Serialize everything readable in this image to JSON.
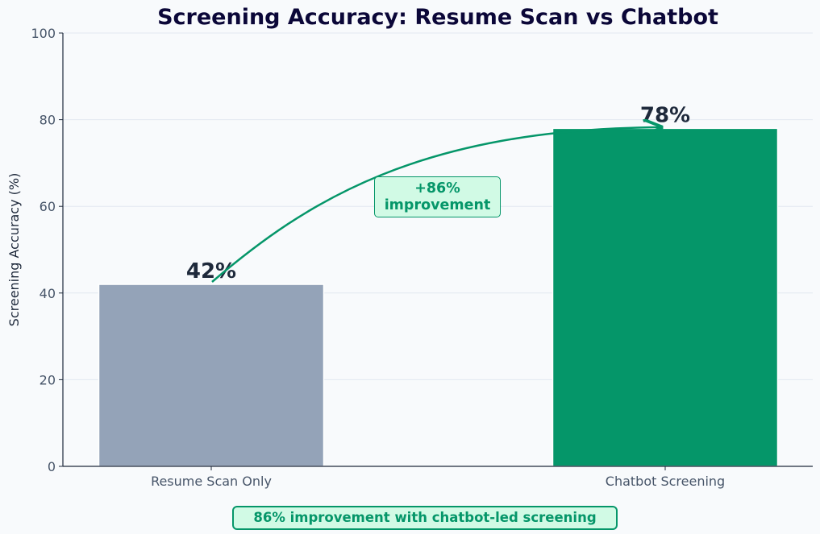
{
  "chart_data": {
    "type": "bar",
    "title": "Screening Accuracy: Resume Scan vs Chatbot",
    "xlabel": "",
    "ylabel": "Screening Accuracy (%)",
    "ylim": [
      0,
      100
    ],
    "yticks": [
      0,
      20,
      40,
      60,
      80,
      100
    ],
    "categories": [
      "Resume Scan Only",
      "Chatbot Screening"
    ],
    "values": [
      42,
      78
    ],
    "value_labels": [
      "42%",
      "78%"
    ],
    "bar_colors": [
      "#94a3b8",
      "#059669"
    ],
    "grid": "horizontal",
    "annotations": [
      {
        "text": "+86%\nimprovement",
        "type": "curved-arrow",
        "from": "Resume Scan Only",
        "to": "Chatbot Screening",
        "color": "#059669"
      }
    ],
    "footnote": "86% improvement with chatbot-led screening"
  },
  "annotation": {
    "line1": "+86%",
    "line2": "improvement"
  },
  "footer": {
    "note": "86% improvement with chatbot-led screening"
  },
  "colors": {
    "accent": "#059669",
    "baseline": "#94a3b8",
    "title": "#0b0738",
    "label": "#1e293b",
    "tick": "#475569"
  }
}
